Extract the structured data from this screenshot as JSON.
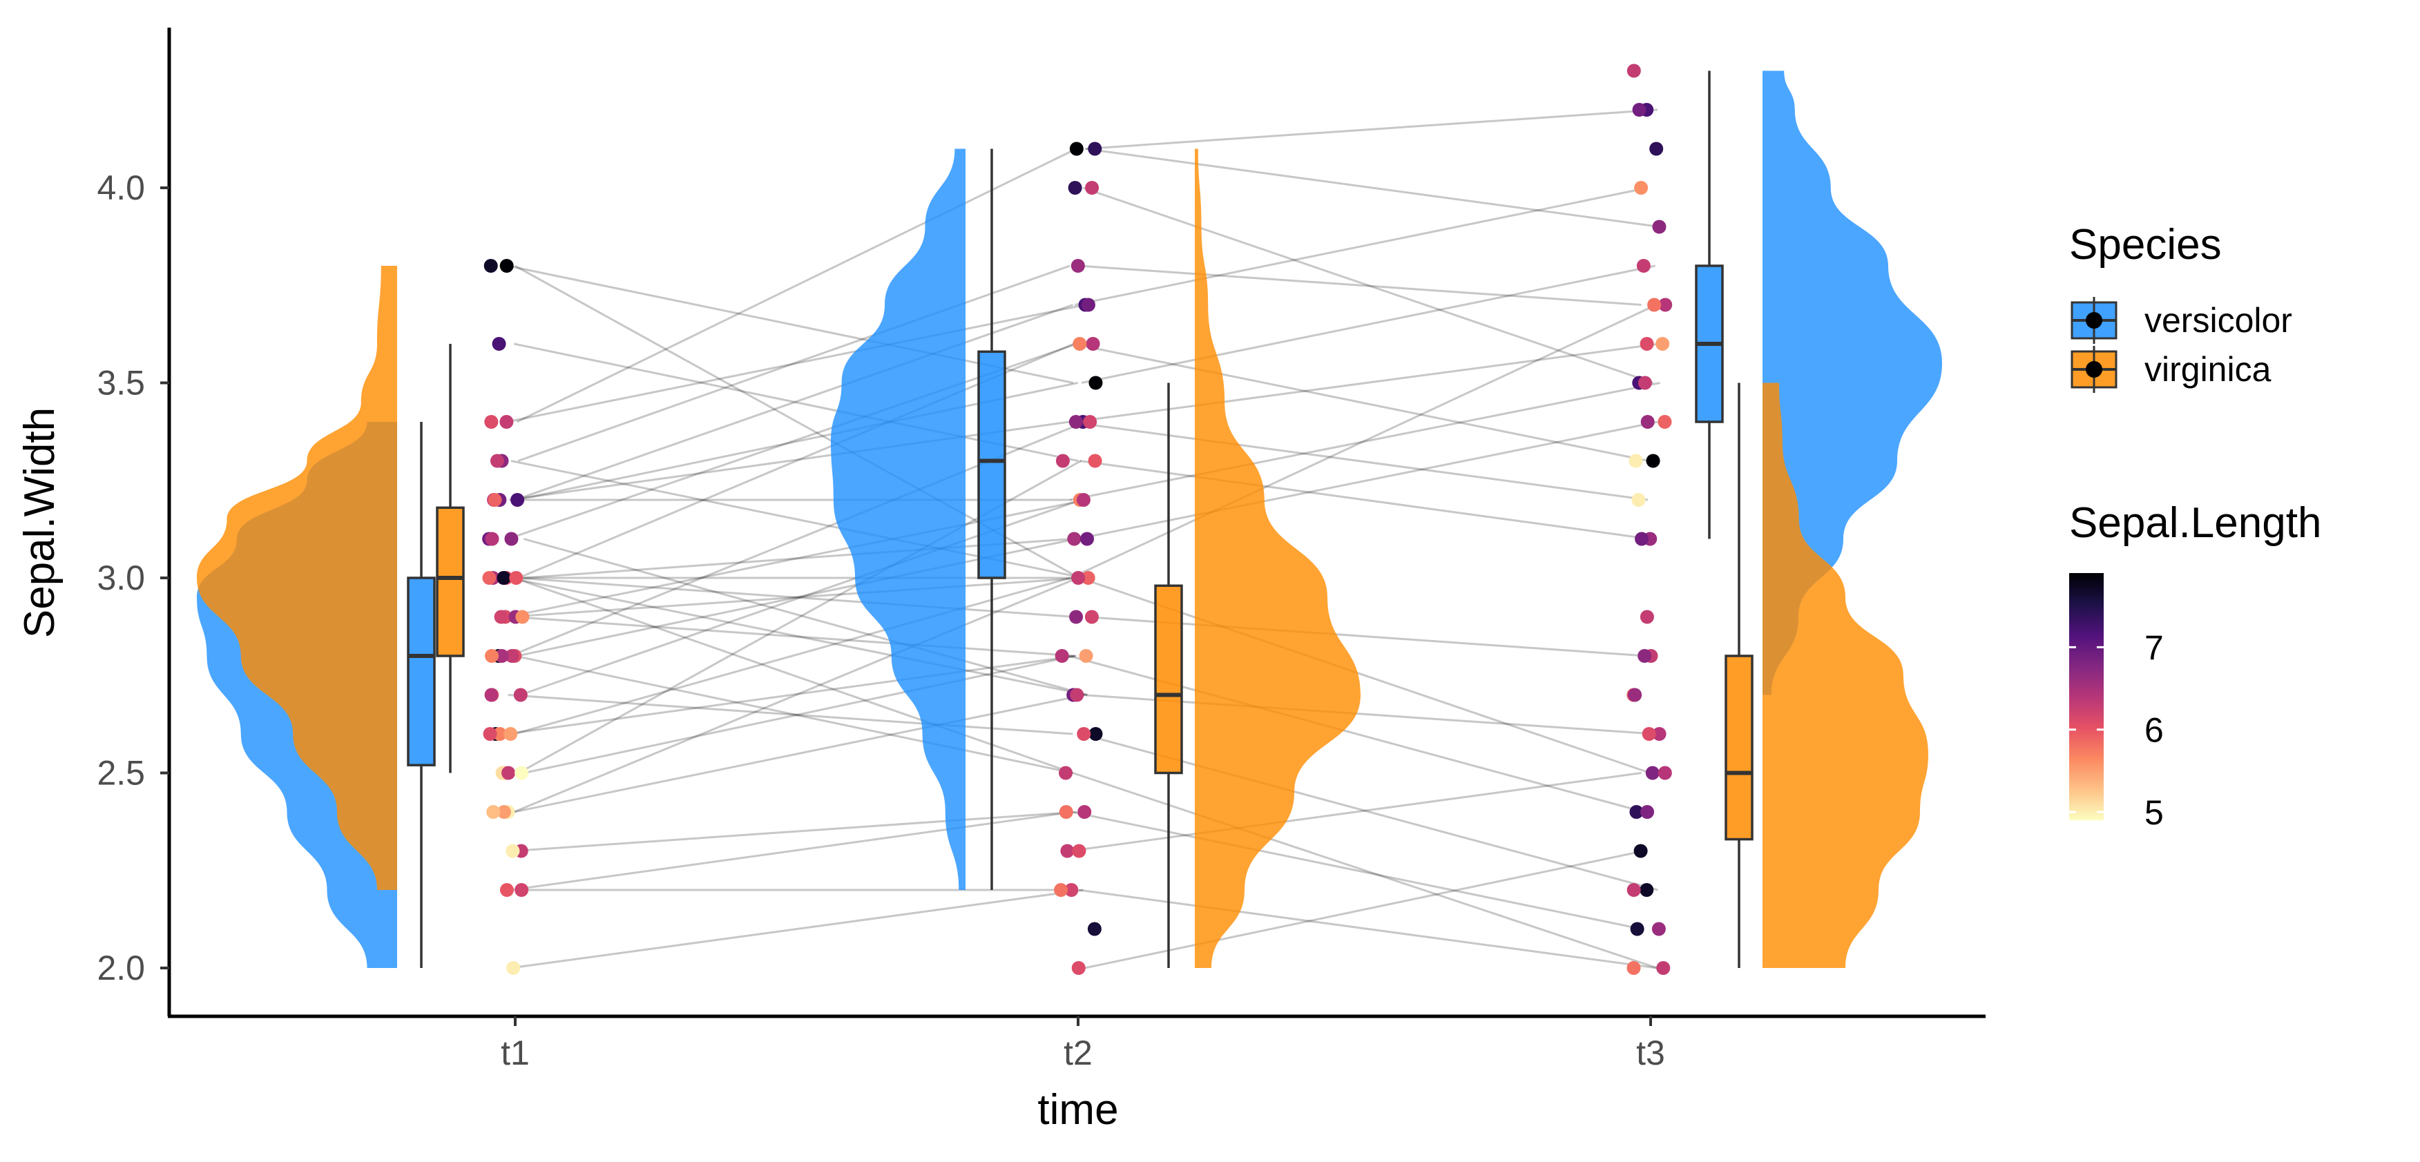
{
  "chart_data": {
    "type": "raincloud",
    "title": "",
    "xlabel": "time",
    "ylabel": "Sepal.Width",
    "x_categories": [
      "t1",
      "t2",
      "t3"
    ],
    "y_ticks": [
      "2.0",
      "2.5",
      "3.0",
      "3.5",
      "4.0"
    ],
    "y_tick_values": [
      2.0,
      2.5,
      3.0,
      3.5,
      4.0
    ],
    "ylim": [
      1.89,
      4.42
    ],
    "legend_species": {
      "title": "Species",
      "items": [
        {
          "label": "versicolor",
          "color": "#1E90FF"
        },
        {
          "label": "virginica",
          "color": "#FF8C00"
        }
      ]
    },
    "legend_color": {
      "title": "Sepal.Length",
      "ticks": [
        "5",
        "6",
        "7"
      ],
      "tick_values": [
        5,
        6,
        7
      ],
      "range": [
        4.9,
        7.9
      ],
      "stops": [
        "#FCFDBF",
        "#FEC287",
        "#FB8861",
        "#E65164",
        "#B63679",
        "#822681",
        "#51127C",
        "#1D1147",
        "#000004"
      ]
    },
    "boxplots": [
      {
        "time": "t1",
        "species": "versicolor",
        "min": 2.0,
        "q1": 2.52,
        "median": 2.8,
        "q3": 3.0,
        "max": 3.4
      },
      {
        "time": "t1",
        "species": "virginica",
        "min": 2.5,
        "q1": 2.8,
        "median": 3.0,
        "q3": 3.18,
        "max": 3.6
      },
      {
        "time": "t2",
        "species": "versicolor",
        "min": 2.2,
        "q1": 3.0,
        "median": 3.3,
        "q3": 3.58,
        "max": 4.1
      },
      {
        "time": "t2",
        "species": "virginica",
        "min": 2.0,
        "q1": 2.5,
        "median": 2.7,
        "q3": 2.98,
        "max": 3.5
      },
      {
        "time": "t3",
        "species": "versicolor",
        "min": 3.1,
        "q1": 3.4,
        "median": 3.6,
        "q3": 3.8,
        "max": 4.3
      },
      {
        "time": "t3",
        "species": "virginica",
        "min": 2.0,
        "q1": 2.33,
        "median": 2.5,
        "q3": 2.8,
        "max": 3.5
      }
    ],
    "densities": [
      {
        "time": "t1",
        "species": "versicolor",
        "side": "left",
        "ymin": 2.0,
        "ymax": 3.4,
        "profile": [
          [
            2.0,
            0.15
          ],
          [
            2.2,
            0.35
          ],
          [
            2.4,
            0.55
          ],
          [
            2.6,
            0.78
          ],
          [
            2.8,
            0.95
          ],
          [
            2.95,
            1.0
          ],
          [
            3.1,
            0.8
          ],
          [
            3.25,
            0.45
          ],
          [
            3.4,
            0.15
          ]
        ]
      },
      {
        "time": "t1",
        "species": "virginica",
        "side": "left",
        "ymin": 2.2,
        "ymax": 3.8,
        "profile": [
          [
            2.2,
            0.1
          ],
          [
            2.4,
            0.3
          ],
          [
            2.6,
            0.52
          ],
          [
            2.8,
            0.78
          ],
          [
            3.0,
            1.0
          ],
          [
            3.15,
            0.85
          ],
          [
            3.3,
            0.45
          ],
          [
            3.45,
            0.18
          ],
          [
            3.6,
            0.1
          ],
          [
            3.8,
            0.08
          ]
        ]
      },
      {
        "time": "t2",
        "species": "versicolor",
        "side": "left",
        "ymin": 2.2,
        "ymax": 4.1,
        "profile": [
          [
            2.2,
            0.05
          ],
          [
            2.4,
            0.15
          ],
          [
            2.6,
            0.32
          ],
          [
            2.8,
            0.55
          ],
          [
            3.0,
            0.82
          ],
          [
            3.2,
            0.98
          ],
          [
            3.35,
            1.0
          ],
          [
            3.5,
            0.92
          ],
          [
            3.7,
            0.6
          ],
          [
            3.9,
            0.3
          ],
          [
            4.1,
            0.08
          ]
        ]
      },
      {
        "time": "t2",
        "species": "virginica",
        "side": "right",
        "ymin": 2.0,
        "ymax": 4.1,
        "profile": [
          [
            2.0,
            0.1
          ],
          [
            2.2,
            0.3
          ],
          [
            2.45,
            0.6
          ],
          [
            2.7,
            1.0
          ],
          [
            2.95,
            0.8
          ],
          [
            3.2,
            0.42
          ],
          [
            3.45,
            0.18
          ],
          [
            3.7,
            0.08
          ],
          [
            3.9,
            0.04
          ],
          [
            4.1,
            0.02
          ]
        ]
      },
      {
        "time": "t3",
        "species": "versicolor",
        "side": "right",
        "ymin": 2.7,
        "ymax": 4.3,
        "profile": [
          [
            2.7,
            0.05
          ],
          [
            2.9,
            0.2
          ],
          [
            3.1,
            0.45
          ],
          [
            3.3,
            0.75
          ],
          [
            3.55,
            1.0
          ],
          [
            3.8,
            0.7
          ],
          [
            4.0,
            0.38
          ],
          [
            4.2,
            0.18
          ],
          [
            4.3,
            0.12
          ]
        ]
      },
      {
        "time": "t3",
        "species": "virginica",
        "side": "right",
        "ymin": 2.0,
        "ymax": 3.5,
        "profile": [
          [
            2.0,
            0.5
          ],
          [
            2.2,
            0.7
          ],
          [
            2.4,
            0.95
          ],
          [
            2.55,
            1.0
          ],
          [
            2.75,
            0.85
          ],
          [
            2.95,
            0.5
          ],
          [
            3.15,
            0.22
          ],
          [
            3.35,
            0.12
          ],
          [
            3.5,
            0.1
          ]
        ]
      }
    ],
    "points_t1": [
      [
        3.8,
        7.9
      ],
      [
        3.8,
        7.7
      ],
      [
        3.6,
        7.2
      ],
      [
        3.4,
        6.3
      ],
      [
        3.4,
        6.1
      ],
      [
        3.3,
        6.7
      ],
      [
        3.3,
        6.3
      ],
      [
        3.2,
        6.9
      ],
      [
        3.2,
        7.2
      ],
      [
        3.2,
        6.4
      ],
      [
        3.2,
        5.9
      ],
      [
        3.1,
        6.9
      ],
      [
        3.1,
        6.7
      ],
      [
        3.1,
        6.4
      ],
      [
        3.0,
        6.6
      ],
      [
        3.0,
        6.5
      ],
      [
        3.0,
        6.1
      ],
      [
        3.0,
        7.7
      ],
      [
        3.0,
        5.9
      ],
      [
        3.0,
        6.0
      ],
      [
        2.9,
        6.1
      ],
      [
        2.9,
        6.6
      ],
      [
        2.9,
        6.2
      ],
      [
        2.9,
        5.6
      ],
      [
        2.8,
        6.1
      ],
      [
        2.8,
        6.3
      ],
      [
        2.8,
        7.7
      ],
      [
        2.8,
        6.5
      ],
      [
        2.8,
        5.7
      ],
      [
        2.7,
        6.3
      ],
      [
        2.7,
        5.8
      ],
      [
        2.7,
        6.4
      ],
      [
        2.6,
        7.7
      ],
      [
        2.6,
        5.7
      ],
      [
        2.6,
        6.1
      ],
      [
        2.6,
        5.5
      ],
      [
        2.5,
        5.6
      ],
      [
        2.5,
        5.1
      ],
      [
        2.5,
        6.3
      ],
      [
        2.5,
        4.9
      ],
      [
        2.4,
        5.0
      ],
      [
        2.4,
        5.5
      ],
      [
        2.4,
        5.3
      ],
      [
        2.3,
        6.3
      ],
      [
        2.3,
        5.0
      ],
      [
        2.2,
        6.0
      ],
      [
        2.2,
        6.2
      ],
      [
        2.0,
        5.0
      ]
    ],
    "points_t2": [
      [
        4.1,
        7.9
      ],
      [
        4.1,
        7.4
      ],
      [
        4.0,
        6.3
      ],
      [
        4.0,
        7.4
      ],
      [
        3.8,
        6.6
      ],
      [
        3.7,
        7.2
      ],
      [
        3.7,
        6.9
      ],
      [
        3.6,
        6.4
      ],
      [
        3.6,
        5.7
      ],
      [
        3.5,
        7.9
      ],
      [
        3.4,
        7.2
      ],
      [
        3.4,
        6.2
      ],
      [
        3.4,
        6.7
      ],
      [
        3.3,
        6.3
      ],
      [
        3.3,
        6.0
      ],
      [
        3.2,
        5.7
      ],
      [
        3.2,
        6.4
      ],
      [
        3.1,
        6.5
      ],
      [
        3.1,
        6.9
      ],
      [
        3.0,
        5.9
      ],
      [
        3.0,
        6.3
      ],
      [
        2.9,
        6.7
      ],
      [
        2.9,
        6.2
      ],
      [
        2.8,
        5.5
      ],
      [
        2.8,
        6.4
      ],
      [
        2.7,
        6.9
      ],
      [
        2.7,
        6.3
      ],
      [
        2.6,
        7.7
      ],
      [
        2.6,
        6.1
      ],
      [
        2.5,
        6.3
      ],
      [
        2.4,
        6.4
      ],
      [
        2.4,
        5.8
      ],
      [
        2.3,
        6.3
      ],
      [
        2.3,
        6.1
      ],
      [
        2.2,
        6.2
      ],
      [
        2.2,
        5.8
      ],
      [
        2.1,
        7.6
      ],
      [
        2.0,
        6.1
      ]
    ],
    "points_t3": [
      [
        4.3,
        6.3
      ],
      [
        4.2,
        7.2
      ],
      [
        4.2,
        6.9
      ],
      [
        4.1,
        7.4
      ],
      [
        4.0,
        5.6
      ],
      [
        3.9,
        6.7
      ],
      [
        3.8,
        6.3
      ],
      [
        3.7,
        6.4
      ],
      [
        3.7,
        5.8
      ],
      [
        3.6,
        6.1
      ],
      [
        3.6,
        5.5
      ],
      [
        3.5,
        7.2
      ],
      [
        3.5,
        6.3
      ],
      [
        3.4,
        6.6
      ],
      [
        3.4,
        5.9
      ],
      [
        3.3,
        7.9
      ],
      [
        3.3,
        5.0
      ],
      [
        3.2,
        5.0
      ],
      [
        3.1,
        6.6
      ],
      [
        3.1,
        6.9
      ],
      [
        2.9,
        6.3
      ],
      [
        2.8,
        6.3
      ],
      [
        2.8,
        6.7
      ],
      [
        2.7,
        6.0
      ],
      [
        2.7,
        6.6
      ],
      [
        2.6,
        6.4
      ],
      [
        2.6,
        6.1
      ],
      [
        2.5,
        6.8
      ],
      [
        2.5,
        6.4
      ],
      [
        2.4,
        7.4
      ],
      [
        2.4,
        6.8
      ],
      [
        2.3,
        7.7
      ],
      [
        2.2,
        7.7
      ],
      [
        2.2,
        6.3
      ],
      [
        2.1,
        7.6
      ],
      [
        2.1,
        6.6
      ],
      [
        2.0,
        6.3
      ],
      [
        2.0,
        5.8
      ]
    ],
    "segments": [
      [
        [
          3.8,
          3.0
        ],
        [
          3.8,
          3.5
        ],
        [
          3.6,
          3.3
        ],
        [
          3.4,
          3.7
        ],
        [
          3.4,
          4.1
        ],
        [
          3.3,
          3.0
        ],
        [
          3.3,
          3.8
        ],
        [
          3.2,
          3.7
        ],
        [
          3.2,
          3.2
        ],
        [
          3.2,
          3.5
        ],
        [
          3.2,
          3.4
        ],
        [
          3.1,
          2.7
        ],
        [
          3.1,
          3.6
        ],
        [
          3.0,
          3.1
        ],
        [
          3.0,
          3.0
        ],
        [
          3.0,
          3.6
        ],
        [
          3.0,
          2.7
        ],
        [
          3.0,
          2.5
        ],
        [
          3.0,
          2.9
        ],
        [
          2.9,
          3.0
        ],
        [
          2.9,
          2.8
        ],
        [
          2.9,
          3.2
        ],
        [
          2.8,
          3.4
        ],
        [
          2.8,
          2.5
        ],
        [
          2.8,
          3.1
        ],
        [
          2.7,
          3.2
        ],
        [
          2.7,
          2.6
        ],
        [
          2.6,
          3.0
        ],
        [
          2.6,
          2.8
        ],
        [
          2.5,
          3.3
        ],
        [
          2.5,
          2.8
        ],
        [
          2.4,
          3.0
        ],
        [
          2.4,
          2.7
        ],
        [
          2.3,
          2.4
        ],
        [
          2.2,
          2.4
        ],
        [
          2.2,
          2.2
        ],
        [
          2.0,
          2.2
        ]
      ],
      [
        [
          4.1,
          3.9
        ],
        [
          4.1,
          4.2
        ],
        [
          4.0,
          3.5
        ],
        [
          3.8,
          3.7
        ],
        [
          3.7,
          4.0
        ],
        [
          3.6,
          3.3
        ],
        [
          3.5,
          3.8
        ],
        [
          3.4,
          3.6
        ],
        [
          3.4,
          3.2
        ],
        [
          3.3,
          3.1
        ],
        [
          3.2,
          3.5
        ],
        [
          3.1,
          3.4
        ],
        [
          3.0,
          2.5
        ],
        [
          3.0,
          3.7
        ],
        [
          2.9,
          2.8
        ],
        [
          2.8,
          2.4
        ],
        [
          2.7,
          2.6
        ],
        [
          2.6,
          2.2
        ],
        [
          2.5,
          2.0
        ],
        [
          2.4,
          2.1
        ],
        [
          2.3,
          2.5
        ],
        [
          2.2,
          2.0
        ],
        [
          2.0,
          2.3
        ]
      ]
    ]
  }
}
